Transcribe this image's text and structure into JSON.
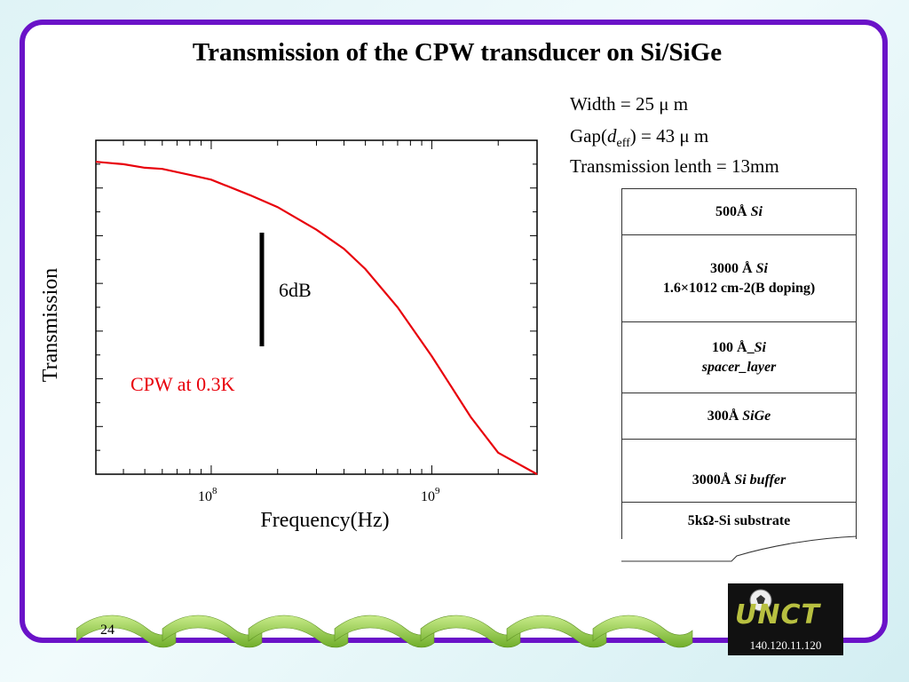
{
  "title": "Transmission of the CPW transducer on Si/SiGe",
  "params": {
    "width_line": "Width =  25 μ m",
    "gap_prefix": "Gap(",
    "gap_d": "d",
    "gap_sub": "eff",
    "gap_suffix": ") = 43 μ m",
    "length_line": "Transmission lenth = 13mm"
  },
  "chart_data": {
    "type": "line",
    "xlabel": "Frequency(Hz)",
    "ylabel": "Transmission",
    "x_scale": "log",
    "x_range_hz": [
      30000000,
      3000000000
    ],
    "x_ticks": [
      {
        "base": "10",
        "exp": "8",
        "value": 100000000
      },
      {
        "base": "10",
        "exp": "9",
        "value": 1000000000
      }
    ],
    "y_tick_labels": "none",
    "y_range_db": [
      0,
      -28
    ],
    "scale_bar": {
      "label": "6dB",
      "span_db": 6
    },
    "annotation": {
      "text": "CPW at 0.3K",
      "color": "#e8000b"
    },
    "series": [
      {
        "color": "#e8000b",
        "x_hz": [
          30000000,
          40000000,
          50000000,
          60000000,
          80000000,
          100000000,
          150000000,
          200000000,
          300000000,
          400000000,
          500000000,
          700000000,
          1000000000,
          1500000000,
          2000000000,
          3000000000
        ],
        "y_db": [
          -1.8,
          -2.0,
          -2.3,
          -2.4,
          -2.9,
          -3.3,
          -4.6,
          -5.6,
          -7.5,
          -9.1,
          -10.8,
          -14.0,
          -18.1,
          -23.2,
          -26.2,
          -29.1
        ]
      }
    ]
  },
  "layers": [
    {
      "bold": "500Å ",
      "italic": "Si",
      "line2": ""
    },
    {
      "bold": "3000 Å ",
      "italic": "Si",
      "line2": "1.6×1012 cm-2(B doping)"
    },
    {
      "bold": "100 Å_",
      "italic": "Si",
      "line2": "spacer_layer"
    },
    {
      "bold": "300Å ",
      "italic": "SiGe",
      "line2": ""
    },
    {
      "bold": "3000Å ",
      "italic": "Si buffer",
      "line2": ""
    }
  ],
  "substrate": {
    "bold": "5kΩ-",
    "italic": "Si substrate"
  },
  "page_number": "24",
  "logo": {
    "text": "UNCT",
    "ip": "140.120.11.120"
  },
  "colors": {
    "frame": "#6a12c8",
    "curve": "#e8000b",
    "wave_green": "#8cc63f"
  }
}
